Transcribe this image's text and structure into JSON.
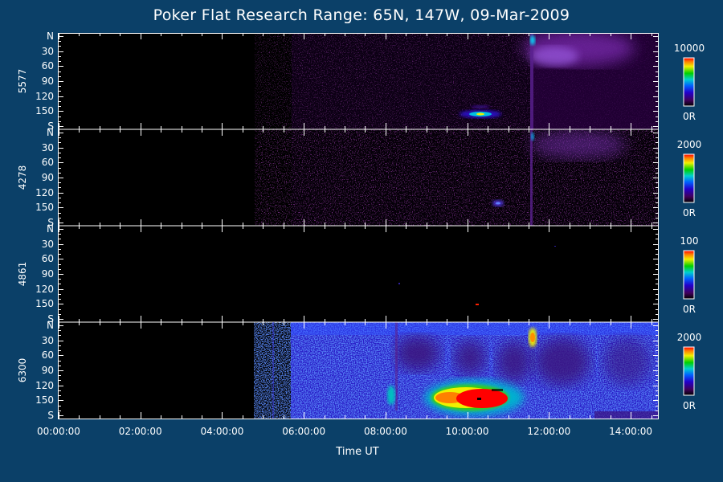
{
  "chart_data": {
    "type": "heatmap",
    "title": "Poker Flat Research Range: 65N, 147W, 09-Mar-2009",
    "xlabel": "Time UT",
    "xlim": [
      "00:00:00",
      "14:40:00"
    ],
    "x_tick_labels": [
      "00:00:00",
      "02:00:00",
      "04:00:00",
      "06:00:00",
      "08:00:00",
      "10:00:00",
      "12:00:00",
      "14:00:00"
    ],
    "y_tick_labels": [
      "N",
      "30",
      "60",
      "90",
      "120",
      "150",
      "S"
    ],
    "data_start": "05:15:00",
    "unit": "R",
    "panels": [
      {
        "label": "5577",
        "colorbar_min": "0R",
        "colorbar_max": "10000"
      },
      {
        "label": "4278",
        "colorbar_min": "0R",
        "colorbar_max": "2000"
      },
      {
        "label": "4861",
        "colorbar_min": "0R",
        "colorbar_max": "100"
      },
      {
        "label": "6300",
        "colorbar_min": "0R",
        "colorbar_max": "2000"
      }
    ]
  }
}
